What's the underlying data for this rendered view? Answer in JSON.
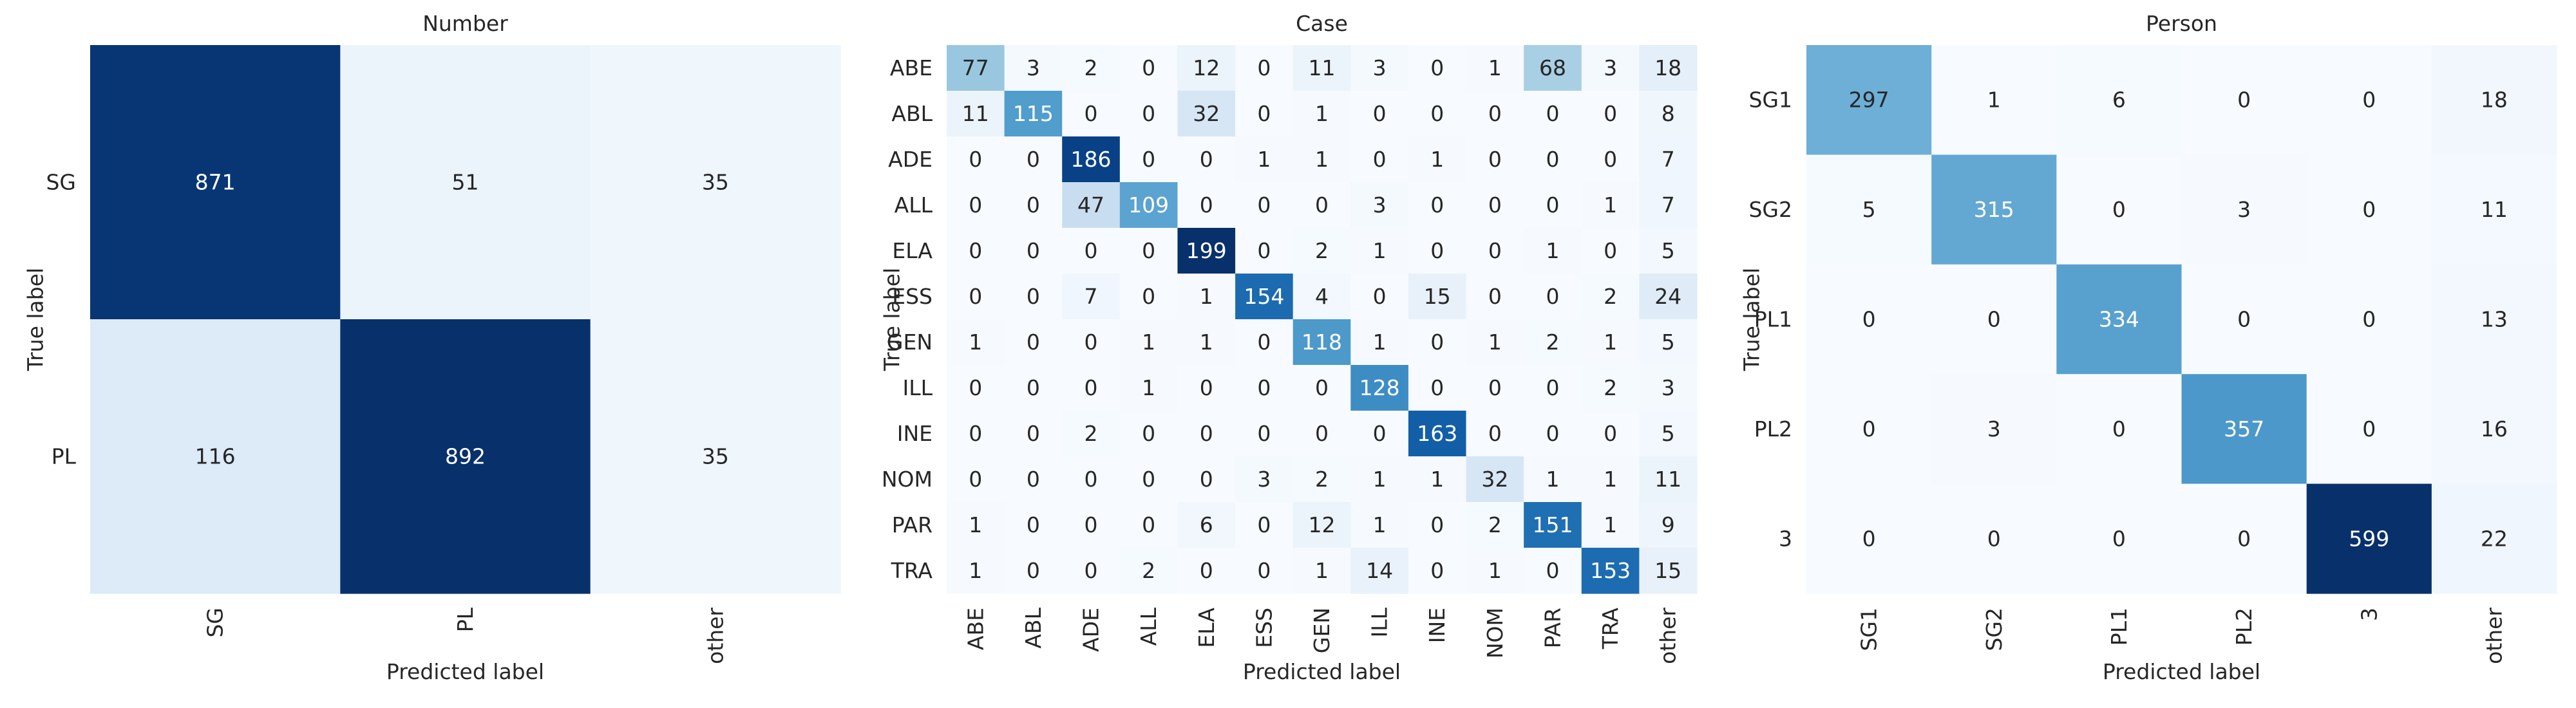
{
  "chart_data": [
    {
      "type": "heatmap",
      "title": "Number",
      "xlabel": "Predicted label",
      "ylabel": "True label",
      "row_labels": [
        "SG",
        "PL"
      ],
      "col_labels": [
        "SG",
        "PL",
        "other"
      ],
      "values": [
        [
          871,
          51,
          35
        ],
        [
          116,
          892,
          35
        ]
      ],
      "colormap": "Blues"
    },
    {
      "type": "heatmap",
      "title": "Case",
      "xlabel": "Predicted label",
      "ylabel": "True label",
      "row_labels": [
        "ABE",
        "ABL",
        "ADE",
        "ALL",
        "ELA",
        "ESS",
        "GEN",
        "ILL",
        "INE",
        "NOM",
        "PAR",
        "TRA"
      ],
      "col_labels": [
        "ABE",
        "ABL",
        "ADE",
        "ALL",
        "ELA",
        "ESS",
        "GEN",
        "ILL",
        "INE",
        "NOM",
        "PAR",
        "TRA",
        "other"
      ],
      "values": [
        [
          77,
          3,
          2,
          0,
          12,
          0,
          11,
          3,
          0,
          1,
          68,
          3,
          18
        ],
        [
          11,
          115,
          0,
          0,
          32,
          0,
          1,
          0,
          0,
          0,
          0,
          0,
          8
        ],
        [
          0,
          0,
          186,
          0,
          0,
          1,
          1,
          0,
          1,
          0,
          0,
          0,
          7
        ],
        [
          0,
          0,
          47,
          109,
          0,
          0,
          0,
          3,
          0,
          0,
          0,
          1,
          7
        ],
        [
          0,
          0,
          0,
          0,
          199,
          0,
          2,
          1,
          0,
          0,
          1,
          0,
          5
        ],
        [
          0,
          0,
          7,
          0,
          1,
          154,
          4,
          0,
          15,
          0,
          0,
          2,
          24
        ],
        [
          1,
          0,
          0,
          1,
          1,
          0,
          118,
          1,
          0,
          1,
          2,
          1,
          5
        ],
        [
          0,
          0,
          0,
          1,
          0,
          0,
          0,
          128,
          0,
          0,
          0,
          2,
          3
        ],
        [
          0,
          0,
          2,
          0,
          0,
          0,
          0,
          0,
          163,
          0,
          0,
          0,
          5
        ],
        [
          0,
          0,
          0,
          0,
          0,
          3,
          2,
          1,
          1,
          32,
          1,
          1,
          11
        ],
        [
          1,
          0,
          0,
          0,
          6,
          0,
          12,
          1,
          0,
          2,
          151,
          1,
          9
        ],
        [
          1,
          0,
          0,
          2,
          0,
          0,
          1,
          14,
          0,
          1,
          0,
          153,
          15
        ]
      ],
      "colormap": "Blues"
    },
    {
      "type": "heatmap",
      "title": "Person",
      "xlabel": "Predicted label",
      "ylabel": "True label",
      "row_labels": [
        "SG1",
        "SG2",
        "PL1",
        "PL2",
        "3"
      ],
      "col_labels": [
        "SG1",
        "SG2",
        "PL1",
        "PL2",
        "3",
        "other"
      ],
      "values": [
        [
          297,
          1,
          6,
          0,
          0,
          18
        ],
        [
          5,
          315,
          0,
          3,
          0,
          11
        ],
        [
          0,
          0,
          334,
          0,
          0,
          13
        ],
        [
          0,
          3,
          0,
          357,
          0,
          16
        ],
        [
          0,
          0,
          0,
          0,
          599,
          22
        ]
      ],
      "colormap": "Blues"
    }
  ]
}
